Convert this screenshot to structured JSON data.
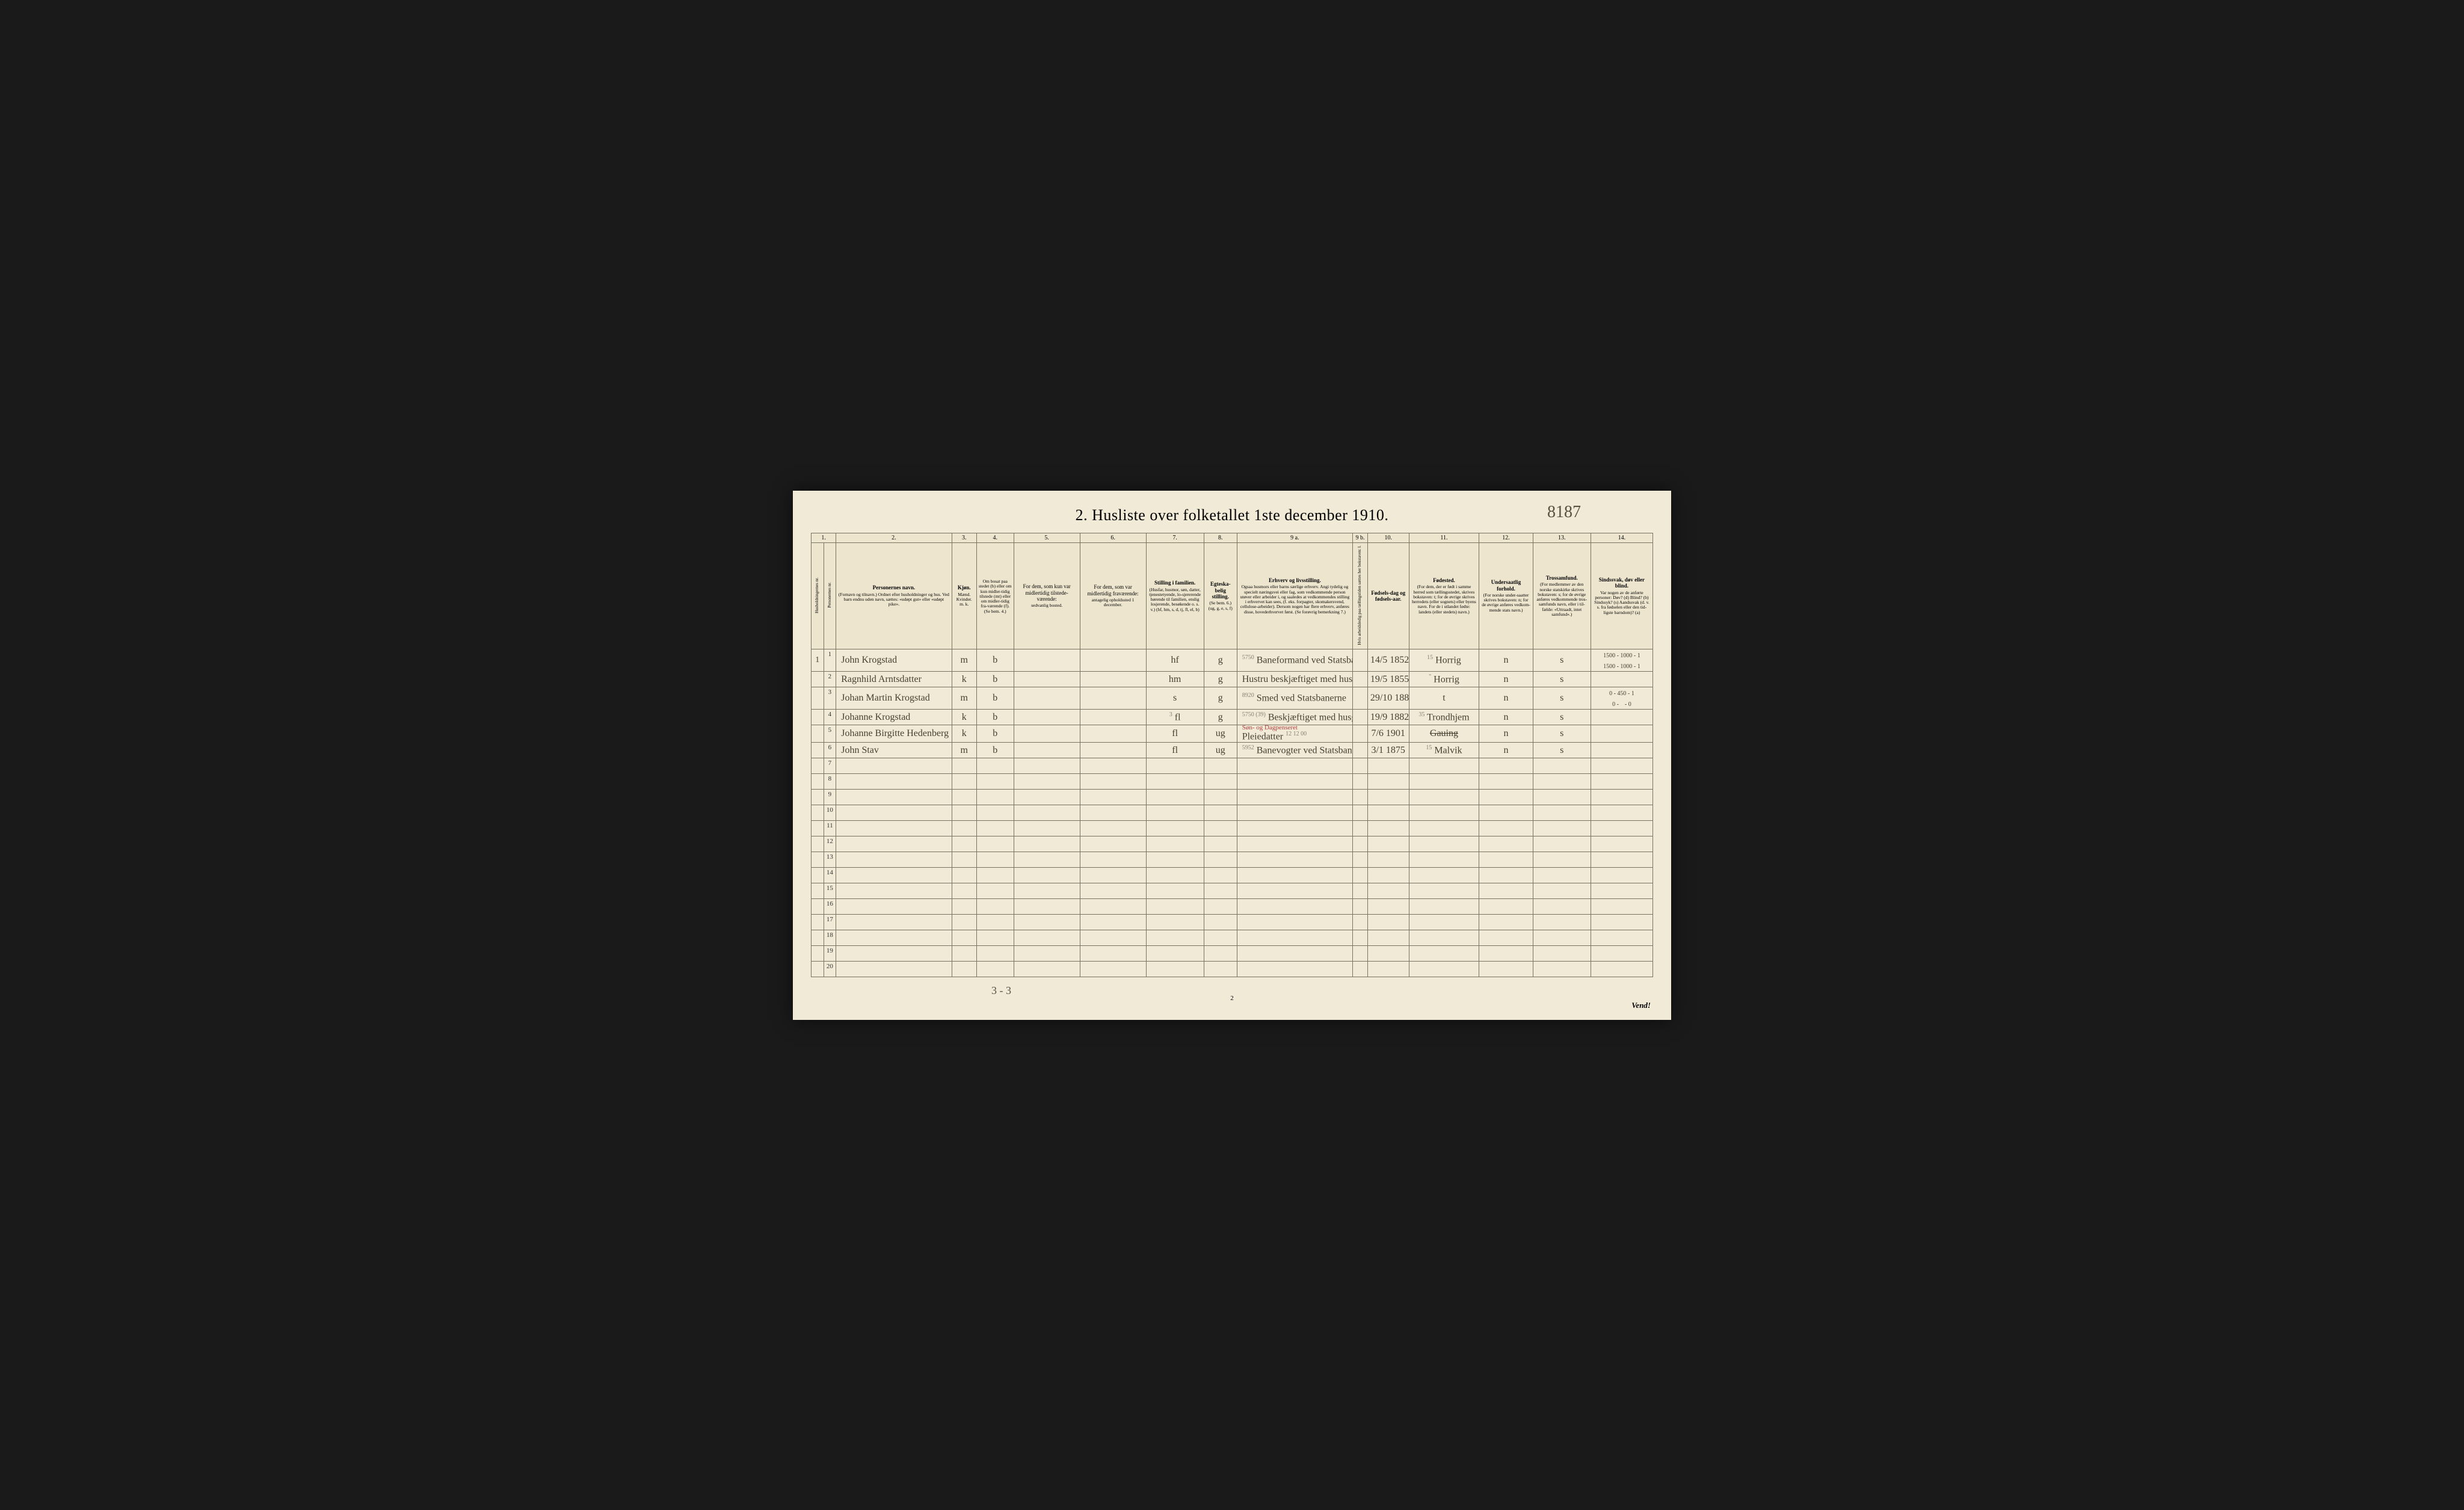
{
  "title": "2.  Husliste over folketallet 1ste december 1910.",
  "handwritten_top_right": "8187",
  "footer_left": "3 - 3",
  "footer_center": "2",
  "footer_right": "Vend!",
  "column_numbers": [
    "1.",
    "2.",
    "3.",
    "4.",
    "5.",
    "6.",
    "7.",
    "8.",
    "9 a.",
    "9 b.",
    "10.",
    "11.",
    "12.",
    "13.",
    "14."
  ],
  "headers": {
    "c1a": "Husholdningernes nr.",
    "c1b": "Personernes nr.",
    "c2": "Personernes navn.",
    "c2_sub": "(Fornavn og tilnavn.)\nOrdnet efter husholdninger og hus.\nVed barn endnu uden navn, sættes: «udøpt gut» eller «udøpt pike».",
    "c3": "Kjøn.",
    "c3_sub": "Mænd.  Kvinder.\nm.  k.",
    "c4": "Om bosat paa stedet (b) eller om kun midler-tidig tilstede (mt) eller om midler-tidig fra-værende (f). (Se bem. 4.)",
    "c5": "For dem, som kun var midlertidig tilstede-værende:",
    "c5_sub": "sedvanlig bosted.",
    "c6": "For dem, som var midlertidig fraværende:",
    "c6_sub": "antagelig opholdssted 1 december.",
    "c7": "Stilling i familien.",
    "c7_sub": "(Husfar, husmor, søn, datter, tjenestetyende, lo-sjererende hørende til familien, enslig losjerende, besøkende o. s. v.)\n(hf, hm, s, d, tj, fl, el, b)",
    "c8": "Egteska-belig stilling.",
    "c8_sub": "(Se bem. 6.)\n(ug, g, e, s, f)",
    "c9a": "Erhverv og livsstilling.",
    "c9a_sub": "Ogsaa husmors eller barns særlige erhverv. Angi tydelig og specielt næringsvei eller fag, som vedkommende person utøver eller arbeider i, og saaledes at vedkommendes stilling i erhvervet kan sees, (f. eks. forpagter, skomakersvend, cellulose-arbeider). Dersom nogen har flere erhverv, anføres disse, hovederhvervet først. (Se forøvrig bemerkning 7.)",
    "c9b": "Hvis arbeidsledig paa tællingstiden sættes her bokstaven: l.",
    "c10": "Fødsels-dag og fødsels-aar.",
    "c11": "Fødested.",
    "c11_sub": "(For dem, der er født i samme herred som tællingsstedet, skrives bokstaven: t; for de øvrige skrives herredets (eller sognets) eller byens navn. For de i utlandet fødte: landets (eller stedets) navn.)",
    "c12": "Undersaatlig forhold.",
    "c12_sub": "(For norske under-saatter skrives bokstaven: n; for de øvrige anføres vedkom-mende stats navn.)",
    "c13": "Trossamfund.",
    "c13_sub": "(For medlemmer av den norske statskirke skrives bokstaven: s; for de øvrige anføres vedkommende tros-samfunds navn, eller i til-fælde: «Uttraadt, intet samfund».)",
    "c14": "Sindssvak, døv eller blind.",
    "c14_sub": "Var nogen av de anførte personer:\nDøv? (d)\nBlind? (b)\nSindssyk? (s)\nAandssvak (d. v. s. fra fødselen eller den tid-ligste barndom)? (a)"
  },
  "rows": [
    {
      "hh": "1",
      "num": "1",
      "name": "John Krogstad",
      "sex": "m",
      "res": "b",
      "c7": "hf",
      "c8": "g",
      "c9": "Baneformand ved Statsbanen",
      "c9_sup": "5750",
      "c10": "14/5 1852",
      "c11": "Horrig",
      "c11_sup": "15",
      "c12": "n",
      "c13": "s",
      "c14": "1500 - 1000 - 1\n1500 - 1000 - 1"
    },
    {
      "hh": "",
      "num": "2",
      "name": "Ragnhild Arntsdatter",
      "sex": "k",
      "res": "b",
      "c7": "hm",
      "c8": "g",
      "c9": "Hustru beskjæftiget med husgjerningen",
      "c10": "19/5 1855",
      "c11": "Horrig",
      "c11_sup": "\"",
      "c12": "n",
      "c13": "s",
      "c14": ""
    },
    {
      "hh": "",
      "num": "3",
      "name": "Johan Martin Krogstad",
      "sex": "m",
      "res": "b",
      "c7": "s",
      "c8": "g",
      "c9": "Smed ved Statsbanerne",
      "c9_sup": "8920",
      "c10": "29/10 1884",
      "c11": "t",
      "c12": "n",
      "c13": "s",
      "c14": "0 - 450 - 1\n0 -    - 0"
    },
    {
      "hh": "",
      "num": "4",
      "name": "Johanne Krogstad",
      "sex": "k",
      "res": "b",
      "c7": "fl",
      "c7_sup": "3",
      "c8": "g",
      "c9": "Beskjæftiget med husgjerningen",
      "c9_sup": "5750 (39)",
      "c10": "19/9 1882",
      "c11": "Trondhjem",
      "c11_sup": "35",
      "c12": "n",
      "c13": "s",
      "c14": ""
    },
    {
      "hh": "",
      "num": "5",
      "name": "Johanne Birgitte Hedenberg",
      "sex": "k",
      "res": "b",
      "c7": "fl",
      "c8": "ug",
      "c9": "Pleiedatter",
      "c9_red": "Søn- og Dagpenseret",
      "c9_sup": "12 12 00",
      "c10": "7/6 1901",
      "c11": "Gauing",
      "c11_strike": true,
      "c12": "n",
      "c13": "s",
      "c14": ""
    },
    {
      "hh": "",
      "num": "6",
      "name": "John Stav",
      "sex": "m",
      "res": "b",
      "c7": "fl",
      "c8": "ug",
      "c9": "Banevogter ved Statsbanerne",
      "c9_sup": "5952",
      "c10": "3/1 1875",
      "c11": "Malvik",
      "c11_sup": "15",
      "c12": "n",
      "c13": "s",
      "c14": ""
    }
  ],
  "empty_rows": [
    "7",
    "8",
    "9",
    "10",
    "11",
    "12",
    "13",
    "14",
    "15",
    "16",
    "17",
    "18",
    "19",
    "20"
  ],
  "col_widths": {
    "c1a": "1.5%",
    "c1b": "1.5%",
    "c2": "14%",
    "c3": "3%",
    "c4": "4.5%",
    "c5": "8%",
    "c6": "8%",
    "c7": "7%",
    "c8": "4%",
    "c9a": "14%",
    "c9b": "1.8%",
    "c10": "5%",
    "c11": "8.5%",
    "c12": "6.5%",
    "c13": "7%",
    "c14": "7.5%"
  },
  "colors": {
    "paper": "#f0ead6",
    "border": "#7a7260",
    "ink": "#4a4030",
    "red": "#b04040"
  }
}
